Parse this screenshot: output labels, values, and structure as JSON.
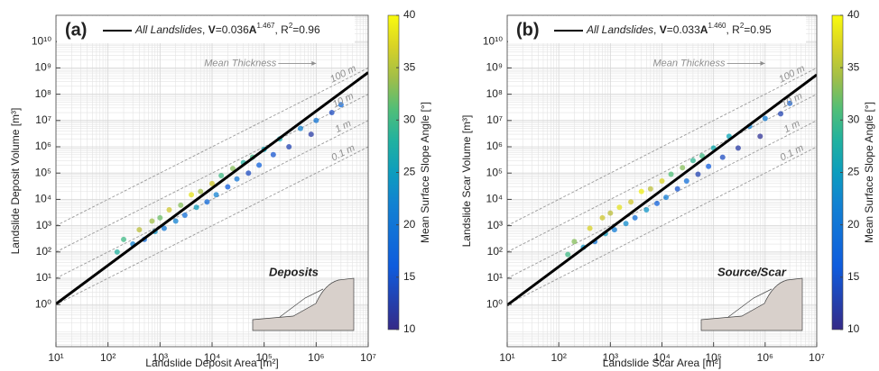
{
  "chart_data": [
    {
      "type": "scatter",
      "panel_label": "(a)",
      "x_label": "Landslide Deposit Area [m²]",
      "y_label": "Landslide Deposit Volume [m³]",
      "log_x": true,
      "log_y": true,
      "grid": true,
      "xlim": [
        10,
        10000000
      ],
      "ylim": [
        0.025,
        100000000000
      ],
      "xticks": [
        {
          "value": 10,
          "label": "10¹"
        },
        {
          "value": 100,
          "label": "10²"
        },
        {
          "value": 1000,
          "label": "10³"
        },
        {
          "value": 10000,
          "label": "10⁴"
        },
        {
          "value": 100000,
          "label": "10⁵"
        },
        {
          "value": 1000000,
          "label": "10⁶"
        },
        {
          "value": 10000000,
          "label": "10⁷"
        }
      ],
      "yticks": [
        {
          "value": 1,
          "label": "10⁰"
        },
        {
          "value": 10,
          "label": "10¹"
        },
        {
          "value": 100,
          "label": "10²"
        },
        {
          "value": 1000,
          "label": "10³"
        },
        {
          "value": 10000,
          "label": "10⁴"
        },
        {
          "value": 100000,
          "label": "10⁵"
        },
        {
          "value": 1000000,
          "label": "10⁶"
        },
        {
          "value": 10000000,
          "label": "10⁷"
        },
        {
          "value": 100000000,
          "label": "10⁸"
        },
        {
          "value": 1000000000,
          "label": "10⁹"
        },
        {
          "value": 10000000000,
          "label": "10¹⁰"
        }
      ],
      "colorbar": {
        "label": "Mean Surface Slope Angle [°]",
        "lim": [
          10,
          40
        ],
        "ticks": [
          10,
          15,
          20,
          25,
          30,
          35,
          40
        ],
        "colormap": "parula"
      },
      "fit": {
        "name": "All Landslides",
        "lhs": "V",
        "eq": "=",
        "coef": 0.036,
        "var": "A",
        "exponent": 1.467,
        "sep": ", R",
        "sup": "2",
        "r2": 0.96,
        "color": "#000000"
      },
      "thickness_annotation": "Mean Thickness",
      "thickness_lines": [
        {
          "value": 100,
          "label": "100 m"
        },
        {
          "value": 10,
          "label": "10 m"
        },
        {
          "value": 1,
          "label": "1 m"
        },
        {
          "value": 0.1,
          "label": "0.1 m"
        }
      ],
      "inset_label": "Deposits",
      "x": [
        150,
        200,
        300,
        400,
        500,
        700,
        800,
        1000,
        1200,
        1500,
        2000,
        2500,
        3000,
        4000,
        5000,
        6000,
        8000,
        10000,
        12000,
        15000,
        20000,
        25000,
        30000,
        40000,
        50000,
        60000,
        80000,
        100000,
        150000,
        200000,
        300000,
        500000,
        800000,
        1000000,
        2000000,
        3000000
      ],
      "y": [
        100,
        300,
        200,
        700,
        300,
        1500,
        600,
        2000,
        800,
        4000,
        1500,
        6000,
        2500,
        15000,
        5000,
        20000,
        8000,
        40000,
        15000,
        80000,
        30000,
        150000,
        60000,
        250000,
        100000,
        400000,
        200000,
        800000,
        500000,
        2000000,
        1000000,
        5000000,
        3000000,
        10000000,
        20000000,
        40000000
      ],
      "c": [
        28,
        30,
        22,
        35,
        18,
        34,
        24,
        32,
        20,
        36,
        22,
        33,
        19,
        38,
        25,
        34,
        18,
        36,
        22,
        30,
        16,
        33,
        20,
        28,
        14,
        30,
        17,
        26,
        15,
        27,
        13,
        22,
        12,
        20,
        14,
        18
      ]
    },
    {
      "type": "scatter",
      "panel_label": "(b)",
      "x_label": "Landslide Scar Area [m²]",
      "y_label": "Landslide Scar Volume [m³]",
      "log_x": true,
      "log_y": true,
      "grid": true,
      "xlim": [
        10,
        10000000
      ],
      "ylim": [
        0.025,
        100000000000
      ],
      "xticks": [
        {
          "value": 10,
          "label": "10¹"
        },
        {
          "value": 100,
          "label": "10²"
        },
        {
          "value": 1000,
          "label": "10³"
        },
        {
          "value": 10000,
          "label": "10⁴"
        },
        {
          "value": 100000,
          "label": "10⁵"
        },
        {
          "value": 1000000,
          "label": "10⁶"
        },
        {
          "value": 10000000,
          "label": "10⁷"
        }
      ],
      "yticks": [
        {
          "value": 1,
          "label": "10⁰"
        },
        {
          "value": 10,
          "label": "10¹"
        },
        {
          "value": 100,
          "label": "10²"
        },
        {
          "value": 1000,
          "label": "10³"
        },
        {
          "value": 10000,
          "label": "10⁴"
        },
        {
          "value": 100000,
          "label": "10⁵"
        },
        {
          "value": 1000000,
          "label": "10⁶"
        },
        {
          "value": 10000000,
          "label": "10⁷"
        },
        {
          "value": 100000000,
          "label": "10⁸"
        },
        {
          "value": 1000000000,
          "label": "10⁹"
        },
        {
          "value": 10000000000,
          "label": "10¹⁰"
        }
      ],
      "colorbar": {
        "label": "Mean Surface Slope Angle [°]",
        "lim": [
          10,
          40
        ],
        "ticks": [
          10,
          15,
          20,
          25,
          30,
          35,
          40
        ],
        "colormap": "parula"
      },
      "fit": {
        "name": "All Landslides",
        "lhs": "V",
        "eq": "=",
        "coef": 0.033,
        "var": "A",
        "exponent": {
          "value": 1.46,
          "label": "1.460"
        },
        "sep": ", R",
        "sup": "2",
        "r2": 0.95,
        "color": "#000000"
      },
      "thickness_annotation": "Mean Thickness",
      "thickness_lines": [
        {
          "value": 100,
          "label": "100 m"
        },
        {
          "value": 10,
          "label": "10 m"
        },
        {
          "value": 1,
          "label": "1 m"
        },
        {
          "value": 0.1,
          "label": "0.1 m"
        }
      ],
      "inset_label": "Source/Scar",
      "x": [
        150,
        200,
        300,
        400,
        500,
        700,
        800,
        1000,
        1200,
        1500,
        2000,
        2500,
        3000,
        4000,
        5000,
        6000,
        8000,
        10000,
        12000,
        15000,
        20000,
        25000,
        30000,
        40000,
        50000,
        60000,
        80000,
        100000,
        150000,
        200000,
        300000,
        500000,
        800000,
        1000000,
        2000000,
        3000000
      ],
      "y": [
        80,
        250,
        150,
        800,
        250,
        2000,
        500,
        3000,
        700,
        5000,
        1200,
        8000,
        2000,
        20000,
        4000,
        25000,
        7000,
        50000,
        12000,
        90000,
        25000,
        160000,
        50000,
        300000,
        90000,
        450000,
        180000,
        900000,
        400000,
        2500000,
        900000,
        6000000,
        2500000,
        12000000,
        18000000,
        45000000
      ],
      "c": [
        30,
        33,
        24,
        37,
        20,
        36,
        25,
        35,
        21,
        38,
        23,
        36,
        19,
        39,
        24,
        35,
        17,
        37,
        21,
        31,
        15,
        33,
        19,
        29,
        13,
        30,
        16,
        27,
        14,
        26,
        12,
        22,
        11,
        21,
        13,
        17
      ]
    }
  ]
}
